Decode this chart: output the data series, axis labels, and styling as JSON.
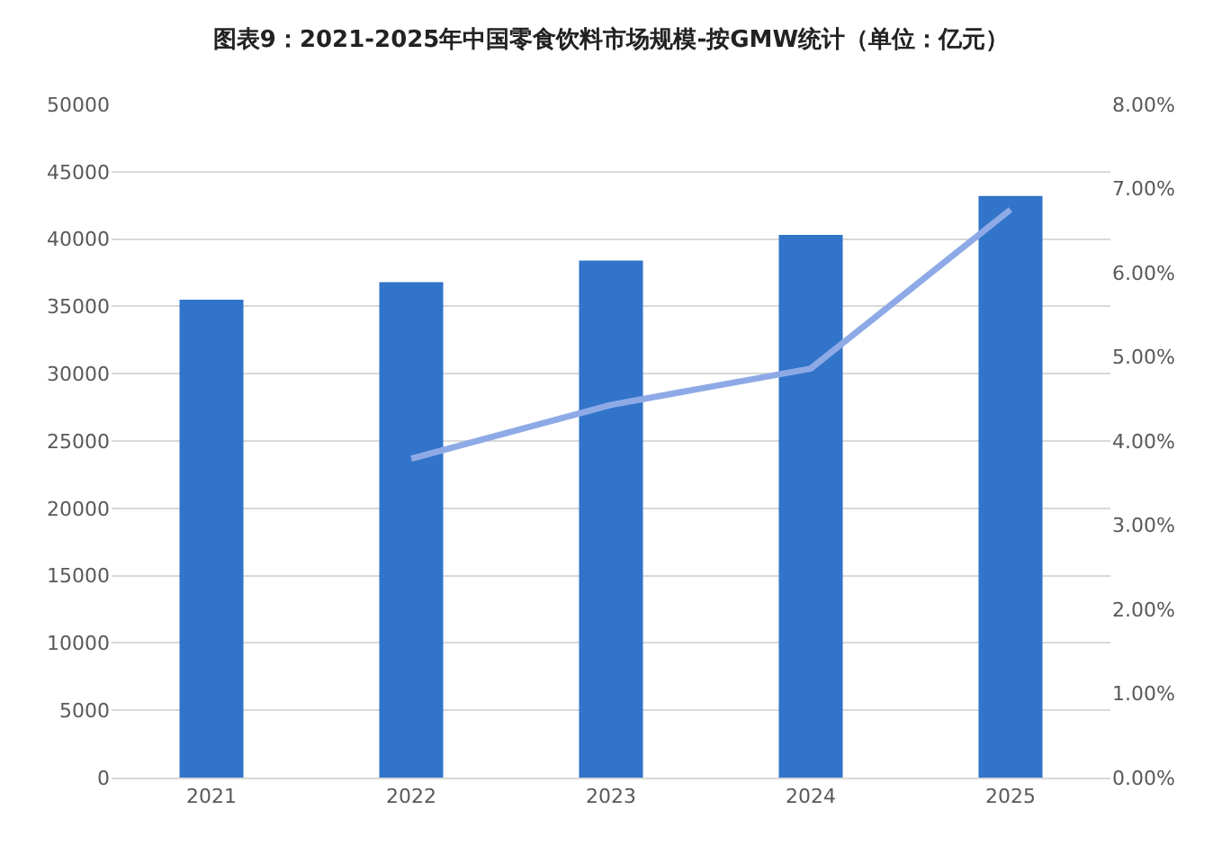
{
  "chart_data": {
    "type": "bar",
    "title": "图表9：2021-2025年中国零食饮料市场规模-按GMW统计（单位：亿元）",
    "categories": [
      "2021",
      "2022",
      "2023",
      "2024",
      "2025"
    ],
    "series": [
      {
        "color": "#3174c9",
        "values": [
          35500,
          36800,
          38400,
          40300,
          43200
        ]
      },
      {
        "type": "line",
        "axis": "y2",
        "color": "#8eaae6",
        "values": [
          null,
          3.79,
          4.43,
          4.86,
          6.75
        ]
      }
    ],
    "ylim": [
      0,
      50000
    ],
    "yticks": [
      0,
      5000,
      10000,
      15000,
      20000,
      25000,
      30000,
      35000,
      40000,
      45000,
      50000
    ],
    "y2lim": [
      0,
      8
    ],
    "y2ticks": [
      {
        "value": 0,
        "label": "0.00%"
      },
      {
        "value": 1,
        "label": "1.00%"
      },
      {
        "value": 2,
        "label": "2.00%"
      },
      {
        "value": 3,
        "label": "3.00%"
      },
      {
        "value": 4,
        "label": "4.00%"
      },
      {
        "value": 5,
        "label": "5.00%"
      },
      {
        "value": 6,
        "label": "6.00%"
      },
      {
        "value": 7,
        "label": "7.00%"
      },
      {
        "value": 8,
        "label": "8.00%"
      }
    ],
    "grid": "y",
    "marker": "none",
    "line_style": "solid"
  }
}
